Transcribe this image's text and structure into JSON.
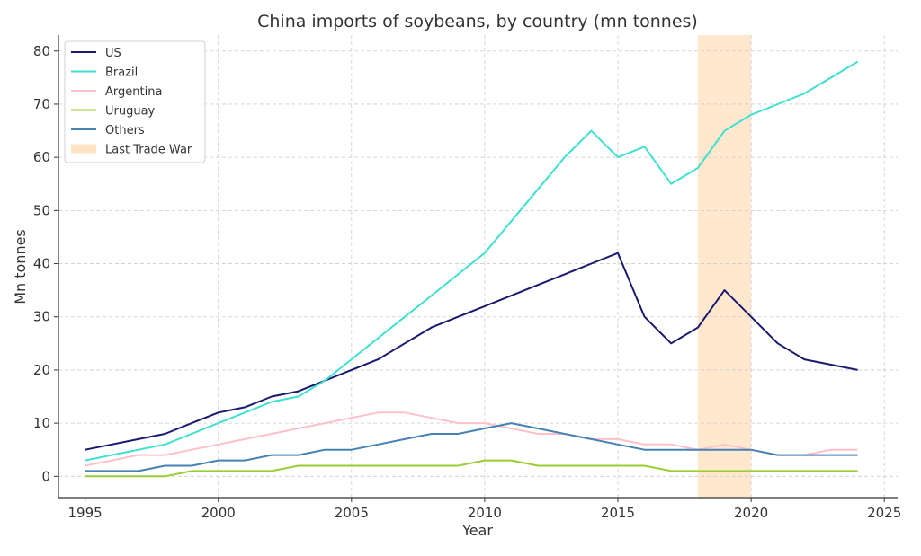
{
  "chart_data": {
    "type": "line",
    "title": "China imports of soybeans, by country (mn tonnes)",
    "xlabel": "Year",
    "ylabel": "Mn tonnes",
    "xlim": [
      1994,
      2025.5
    ],
    "ylim": [
      -4,
      83
    ],
    "xticks": [
      1995,
      2000,
      2005,
      2010,
      2015,
      2020,
      2025
    ],
    "yticks": [
      0,
      10,
      20,
      30,
      40,
      50,
      60,
      70,
      80
    ],
    "grid": true,
    "legend_position": "top-left",
    "x": [
      1995,
      1996,
      1997,
      1998,
      1999,
      2000,
      2001,
      2002,
      2003,
      2004,
      2005,
      2006,
      2007,
      2008,
      2009,
      2010,
      2011,
      2012,
      2013,
      2014,
      2015,
      2016,
      2017,
      2018,
      2019,
      2020,
      2021,
      2022,
      2023,
      2024
    ],
    "series": [
      {
        "name": "US",
        "color": "#191970",
        "values": [
          5,
          6,
          7,
          8,
          10,
          12,
          13,
          15,
          16,
          18,
          20,
          22,
          25,
          28,
          30,
          32,
          34,
          36,
          38,
          40,
          42,
          30,
          25,
          28,
          35,
          30,
          25,
          22,
          21,
          20
        ]
      },
      {
        "name": "Brazil",
        "color": "#40e0d0",
        "values": [
          3,
          4,
          5,
          6,
          8,
          10,
          12,
          14,
          15,
          18,
          22,
          26,
          30,
          34,
          38,
          42,
          48,
          54,
          60,
          65,
          60,
          62,
          55,
          58,
          65,
          68,
          70,
          72,
          75,
          78
        ]
      },
      {
        "name": "Argentina",
        "color": "#ffc0cb",
        "values": [
          2,
          3,
          4,
          4,
          5,
          6,
          7,
          8,
          9,
          10,
          11,
          12,
          12,
          11,
          10,
          10,
          9,
          8,
          8,
          7,
          7,
          6,
          6,
          5,
          6,
          5,
          4,
          4,
          5,
          5
        ]
      },
      {
        "name": "Uruguay",
        "color": "#9acd32",
        "values": [
          0,
          0,
          0,
          0,
          1,
          1,
          1,
          1,
          2,
          2,
          2,
          2,
          2,
          2,
          2,
          3,
          3,
          2,
          2,
          2,
          2,
          2,
          1,
          1,
          1,
          1,
          1,
          1,
          1,
          1
        ]
      },
      {
        "name": "Others",
        "color": "#4682b4",
        "values": [
          1,
          1,
          1,
          2,
          2,
          3,
          3,
          4,
          4,
          5,
          5,
          6,
          7,
          8,
          8,
          9,
          10,
          9,
          8,
          7,
          6,
          5,
          5,
          5,
          5,
          5,
          4,
          4,
          4,
          4
        ]
      }
    ],
    "shaded_regions": [
      {
        "name": "Last Trade War",
        "x_start": 2018,
        "x_end": 2020,
        "color": "#ffe4c4"
      }
    ]
  }
}
